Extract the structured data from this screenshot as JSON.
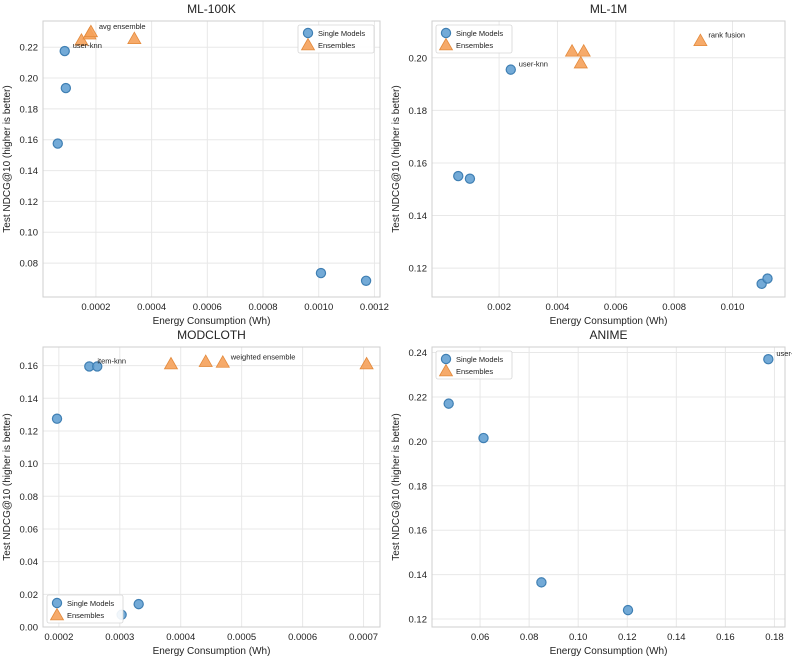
{
  "colors": {
    "single": "#5b9bd0",
    "ensemble": "#f5a15a",
    "single_stroke": "#3f7fb3",
    "ensemble_stroke": "#e3893b",
    "grid": "#e8e8e8",
    "frame": "#cfcfcf"
  },
  "chart_data": [
    {
      "type": "scatter",
      "title": "ML-100K",
      "xlabel": "Energy Consumption (Wh)",
      "ylabel": "Test NDCG@10 (higher is better)",
      "xlim": [
        1e-05,
        0.00122
      ],
      "ylim": [
        0.058,
        0.237
      ],
      "xticks": [
        0.0002,
        0.0004,
        0.0006,
        0.0008,
        0.001,
        0.0012
      ],
      "xtick_labels": [
        "0.0002",
        "0.0004",
        "0.0006",
        "0.0008",
        "0.0010",
        "0.0012"
      ],
      "yticks": [
        0.08,
        0.1,
        0.12,
        0.14,
        0.16,
        0.18,
        0.2,
        0.22
      ],
      "ytick_labels": [
        "0.08",
        "0.10",
        "0.12",
        "0.14",
        "0.16",
        "0.18",
        "0.20",
        "0.22"
      ],
      "legend": {
        "position": "top-right",
        "entries": [
          "Single Models",
          "Ensembles"
        ]
      },
      "series": [
        {
          "name": "Single Models",
          "points": [
            [
              8.8e-05,
              0.2175
            ],
            [
              9.2e-05,
              0.1935
            ],
            [
              6.3e-05,
              0.1575
            ],
            [
              0.001008,
              0.0735
            ],
            [
              0.00117,
              0.0685
            ]
          ]
        },
        {
          "name": "Ensembles",
          "points": [
            [
              0.000148,
              0.2245
            ],
            [
              0.000177,
              0.2285
            ],
            [
              0.000182,
              0.23
            ],
            [
              0.000338,
              0.2255
            ]
          ]
        }
      ],
      "annotations": [
        {
          "text": "user-knn",
          "x": 8.8e-05,
          "y": 0.2175
        },
        {
          "text": "avg ensemble",
          "x": 0.000182,
          "y": 0.23
        }
      ]
    },
    {
      "type": "scatter",
      "title": "ML-1M",
      "xlabel": "Energy Consumption (Wh)",
      "ylabel": "Test NDCG@10 (higher is better)",
      "xlim": [
        -0.0003,
        0.0118
      ],
      "ylim": [
        0.109,
        0.214
      ],
      "xticks": [
        0.002,
        0.004,
        0.006,
        0.008,
        0.01
      ],
      "xtick_labels": [
        "0.002",
        "0.004",
        "0.006",
        "0.008",
        "0.010"
      ],
      "yticks": [
        0.12,
        0.14,
        0.16,
        0.18,
        0.2
      ],
      "ytick_labels": [
        "0.12",
        "0.14",
        "0.16",
        "0.18",
        "0.20"
      ],
      "legend": {
        "position": "top-left",
        "entries": [
          "Single Models",
          "Ensembles"
        ]
      },
      "series": [
        {
          "name": "Single Models",
          "points": [
            [
              0.0024,
              0.1955
            ],
            [
              0.0006,
              0.155
            ],
            [
              0.001,
              0.154
            ],
            [
              0.011,
              0.114
            ],
            [
              0.0112,
              0.116
            ]
          ]
        },
        {
          "name": "Ensembles",
          "points": [
            [
              0.0045,
              0.2025
            ],
            [
              0.0049,
              0.2025
            ],
            [
              0.0048,
              0.198
            ],
            [
              0.0089,
              0.2065
            ]
          ]
        }
      ],
      "annotations": [
        {
          "text": "user-knn",
          "x": 0.0024,
          "y": 0.1955
        },
        {
          "text": "rank fusion",
          "x": 0.0089,
          "y": 0.2065
        }
      ]
    },
    {
      "type": "scatter",
      "title": "MODCLOTH",
      "xlabel": "Energy Consumption (Wh)",
      "ylabel": "Test NDCG@10 (higher is better)",
      "xlim": [
        0.000174,
        0.000727
      ],
      "ylim": [
        0.0,
        0.1714
      ],
      "xticks": [
        0.0002,
        0.0003,
        0.0004,
        0.0005,
        0.0006,
        0.0007
      ],
      "xtick_labels": [
        "0.0002",
        "0.0003",
        "0.0004",
        "0.0005",
        "0.0006",
        "0.0007"
      ],
      "yticks": [
        0.0,
        0.02,
        0.04,
        0.06,
        0.08,
        0.1,
        0.12,
        0.14,
        0.16
      ],
      "ytick_labels": [
        "0.00",
        "0.02",
        "0.04",
        "0.06",
        "0.08",
        "0.10",
        "0.12",
        "0.14",
        "0.16"
      ],
      "legend": {
        "position": "bottom-left",
        "entries": [
          "Single Models",
          "Ensembles"
        ]
      },
      "series": [
        {
          "name": "Single Models",
          "points": [
            [
              0.000197,
              0.1275
            ],
            [
              0.00025,
              0.1595
            ],
            [
              0.000263,
              0.1595
            ],
            [
              0.000303,
              0.0075
            ],
            [
              0.000331,
              0.014
            ]
          ]
        },
        {
          "name": "Ensembles",
          "points": [
            [
              0.000384,
              0.161
            ],
            [
              0.000441,
              0.1625
            ],
            [
              0.000469,
              0.162
            ],
            [
              0.000705,
              0.161
            ]
          ]
        }
      ],
      "annotations": [
        {
          "text": "item-knn",
          "x": 0.00025,
          "y": 0.1595
        },
        {
          "text": "weighted ensemble",
          "x": 0.000469,
          "y": 0.162
        }
      ]
    },
    {
      "type": "scatter",
      "title": "ANIME",
      "xlabel": "Energy Consumption (Wh)",
      "ylabel": "Test NDCG@10 (higher is better)",
      "xlim": [
        0.0404,
        0.1843
      ],
      "ylim": [
        0.1164,
        0.2425
      ],
      "xticks": [
        0.06,
        0.08,
        0.1,
        0.12,
        0.14,
        0.16,
        0.18
      ],
      "xtick_labels": [
        "0.06",
        "0.08",
        "0.10",
        "0.12",
        "0.14",
        "0.16",
        "0.18"
      ],
      "yticks": [
        0.12,
        0.14,
        0.16,
        0.18,
        0.2,
        0.22,
        0.24
      ],
      "ytick_labels": [
        "0.12",
        "0.14",
        "0.16",
        "0.18",
        "0.20",
        "0.22",
        "0.24"
      ],
      "legend": {
        "position": "top-left",
        "entries": [
          "Single Models",
          "Ensembles"
        ]
      },
      "series": [
        {
          "name": "Single Models",
          "points": [
            [
              0.1775,
              0.237
            ],
            [
              0.0472,
              0.217
            ],
            [
              0.0614,
              0.2015
            ],
            [
              0.085,
              0.1365
            ],
            [
              0.1203,
              0.124
            ]
          ]
        },
        {
          "name": "Ensembles",
          "points": []
        }
      ],
      "annotations": [
        {
          "text": "user-knn",
          "x": 0.1775,
          "y": 0.237
        }
      ]
    }
  ]
}
